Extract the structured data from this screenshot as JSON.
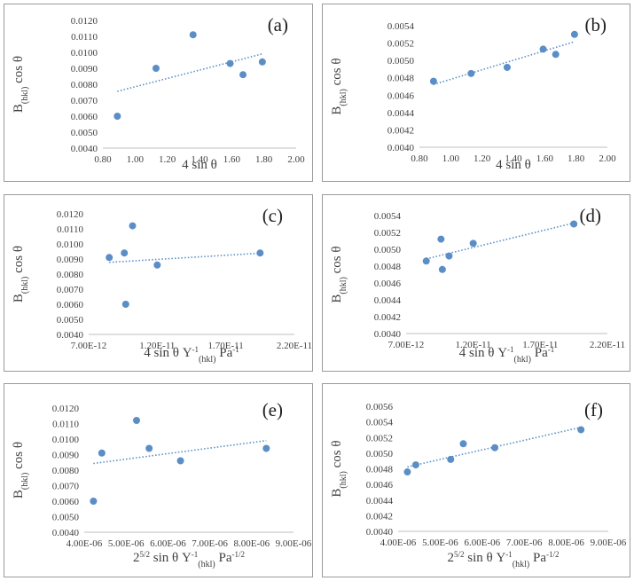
{
  "chart_data": [
    {
      "type": "scatter",
      "panel_label": "(a)",
      "ylabel_parts": [
        "B",
        "(hkl)",
        " cos θ"
      ],
      "xlabel_parts": [
        {
          "t": "4 sin θ"
        }
      ],
      "yticks": [
        "0.0040",
        "0.0050",
        "0.0060",
        "0.0070",
        "0.0080",
        "0.0090",
        "0.0100",
        "0.0110",
        "0.0120"
      ],
      "ylim": [
        0.004,
        0.012
      ],
      "xticks": [
        "0.80",
        "1.00",
        "1.20",
        "1.40",
        "1.60",
        "1.80",
        "2.00"
      ],
      "xlim": [
        0.8,
        2.0
      ],
      "points": [
        [
          0.89,
          0.006
        ],
        [
          1.13,
          0.009
        ],
        [
          1.36,
          0.0111
        ],
        [
          1.59,
          0.0093
        ],
        [
          1.67,
          0.0086
        ],
        [
          1.79,
          0.0094
        ]
      ],
      "trendline": {
        "type": "linear",
        "style": "dotted"
      }
    },
    {
      "type": "scatter",
      "panel_label": "(b)",
      "ylabel_parts": [
        "B",
        "(hkl)",
        " cos θ"
      ],
      "xlabel_parts": [
        {
          "t": "4 sin θ"
        }
      ],
      "yticks": [
        "0.0040",
        "0.0042",
        "0.0044",
        "0.0046",
        "0.0048",
        "0.0050",
        "0.0052",
        "0.0054"
      ],
      "ylim": [
        0.004,
        0.0054
      ],
      "xticks": [
        "0.80",
        "1.00",
        "1.20",
        "1.40",
        "1.60",
        "1.80",
        "2.00"
      ],
      "xlim": [
        0.8,
        2.0
      ],
      "points": [
        [
          0.89,
          0.00476
        ],
        [
          1.13,
          0.00485
        ],
        [
          1.36,
          0.00492
        ],
        [
          1.59,
          0.00513
        ],
        [
          1.67,
          0.00507
        ],
        [
          1.79,
          0.0053
        ]
      ],
      "trendline": {
        "type": "linear",
        "style": "dotted"
      }
    },
    {
      "type": "scatter",
      "panel_label": "(c)",
      "ylabel_parts": [
        "B",
        "(hkl)",
        " cos θ"
      ],
      "xlabel_parts": [
        {
          "t": "4 sin θ Y"
        },
        {
          "t": "-1",
          "s": "sup"
        },
        {
          "t": "(hkl)",
          "s": "sub"
        },
        {
          "t": " Pa"
        },
        {
          "t": "-1",
          "s": "sup"
        }
      ],
      "yticks": [
        "0.0040",
        "0.0050",
        "0.0060",
        "0.0070",
        "0.0080",
        "0.0090",
        "0.0100",
        "0.0110",
        "0.0120"
      ],
      "ylim": [
        0.004,
        0.012
      ],
      "xticks": [
        "7.00E-12",
        "1.20E-11",
        "1.70E-11",
        "2.20E-11"
      ],
      "xlim": [
        7e-12,
        2.2e-11
      ],
      "points": [
        [
          8.5e-12,
          0.0091
        ],
        [
          9.6e-12,
          0.0094
        ],
        [
          9.7e-12,
          0.006
        ],
        [
          1.02e-11,
          0.0112
        ],
        [
          1.2e-11,
          0.0086
        ],
        [
          1.95e-11,
          0.0094
        ]
      ],
      "trendline": {
        "type": "linear",
        "style": "dotted"
      }
    },
    {
      "type": "scatter",
      "panel_label": "(d)",
      "ylabel_parts": [
        "B",
        "(hkl)",
        " cos θ"
      ],
      "xlabel_parts": [
        {
          "t": "4 sin θ Y"
        },
        {
          "t": "-1",
          "s": "sup"
        },
        {
          "t": "(hkl)",
          "s": "sub"
        },
        {
          "t": " Pa"
        },
        {
          "t": "-1",
          "s": "sup"
        }
      ],
      "yticks": [
        "0.0040",
        "0.0042",
        "0.0044",
        "0.0046",
        "0.0048",
        "0.0050",
        "0.0052",
        "0.0054"
      ],
      "ylim": [
        0.004,
        0.0054
      ],
      "xticks": [
        "7.00E-12",
        "1.20E-11",
        "1.70E-11",
        "2.20E-11"
      ],
      "xlim": [
        7e-12,
        2.2e-11
      ],
      "points": [
        [
          8.5e-12,
          0.00486
        ],
        [
          9.6e-12,
          0.00512
        ],
        [
          9.7e-12,
          0.00476
        ],
        [
          1.02e-11,
          0.00492
        ],
        [
          1.2e-11,
          0.00507
        ],
        [
          1.95e-11,
          0.0053
        ]
      ],
      "trendline": {
        "type": "linear",
        "style": "dotted"
      }
    },
    {
      "type": "scatter",
      "panel_label": "(e)",
      "ylabel_parts": [
        "B",
        "(hkl)",
        " cos θ"
      ],
      "xlabel_parts": [
        {
          "t": "2"
        },
        {
          "t": "5/2",
          "s": "sup"
        },
        {
          "t": " sin θ Y"
        },
        {
          "t": "-1",
          "s": "sup"
        },
        {
          "t": "(hkl)",
          "s": "sub"
        },
        {
          "t": " Pa"
        },
        {
          "t": "-1/2",
          "s": "sup"
        }
      ],
      "yticks": [
        "0.0040",
        "0.0050",
        "0.0060",
        "0.0070",
        "0.0080",
        "0.0090",
        "0.0100",
        "0.0110",
        "0.0120"
      ],
      "ylim": [
        0.004,
        0.012
      ],
      "xticks": [
        "4.00E-06",
        "5.00E-06",
        "6.00E-06",
        "7.00E-06",
        "8.00E-06",
        "9.00E-06"
      ],
      "xlim": [
        4e-06,
        9e-06
      ],
      "points": [
        [
          4.22e-06,
          0.006
        ],
        [
          4.42e-06,
          0.0091
        ],
        [
          5.25e-06,
          0.0112
        ],
        [
          5.55e-06,
          0.0094
        ],
        [
          6.3e-06,
          0.0086
        ],
        [
          8.35e-06,
          0.0094
        ]
      ],
      "trendline": {
        "type": "linear",
        "style": "dotted"
      }
    },
    {
      "type": "scatter",
      "panel_label": "(f)",
      "ylabel_parts": [
        "B",
        "(hkl)",
        " cos θ"
      ],
      "xlabel_parts": [
        {
          "t": "2"
        },
        {
          "t": "5/2",
          "s": "sup"
        },
        {
          "t": " sin θ Y"
        },
        {
          "t": "-1",
          "s": "sup"
        },
        {
          "t": "(hkl)",
          "s": "sub"
        },
        {
          "t": " Pa"
        },
        {
          "t": "-1/2",
          "s": "sup"
        }
      ],
      "yticks": [
        "0.0040",
        "0.0042",
        "0.0044",
        "0.0046",
        "0.0048",
        "0.0050",
        "0.0052",
        "0.0054",
        "0.0056"
      ],
      "ylim": [
        0.004,
        0.0056
      ],
      "xticks": [
        "4.00E-06",
        "5.00E-06",
        "6.00E-06",
        "7.00E-06",
        "8.00E-06",
        "9.00E-06"
      ],
      "xlim": [
        4e-06,
        9e-06
      ],
      "points": [
        [
          4.22e-06,
          0.00476
        ],
        [
          4.42e-06,
          0.00485
        ],
        [
          5.25e-06,
          0.00492
        ],
        [
          5.55e-06,
          0.00512
        ],
        [
          6.3e-06,
          0.00507
        ],
        [
          8.35e-06,
          0.0053
        ]
      ],
      "trendline": {
        "type": "linear",
        "style": "dotted"
      }
    }
  ]
}
